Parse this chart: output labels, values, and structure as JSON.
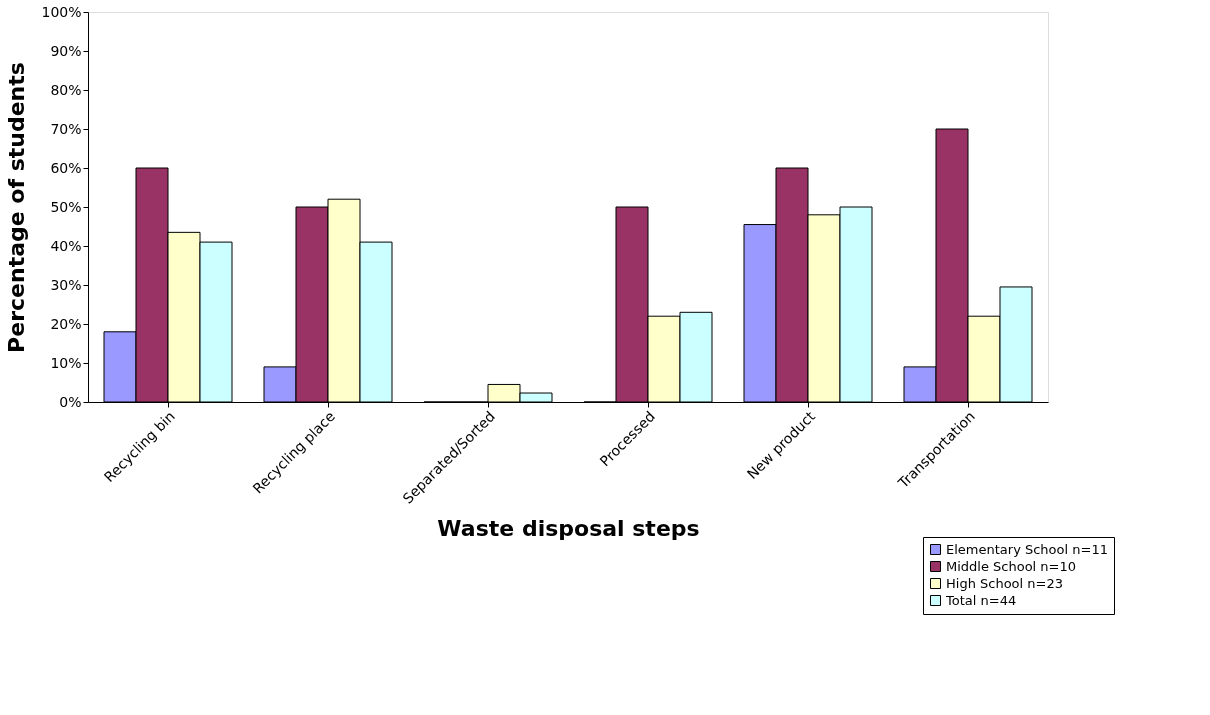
{
  "chart_data": {
    "type": "bar",
    "xlabel": "Waste disposal steps",
    "ylabel": "Percentage of students",
    "categories": [
      "Recycling bin",
      "Recycling place",
      "Separated/Sorted",
      "Processed",
      "New product",
      "Transportation"
    ],
    "series": [
      {
        "name": "Elementary School n=11",
        "color": "#9999ff",
        "values": [
          18,
          9,
          0,
          0,
          45.5,
          9
        ]
      },
      {
        "name": "Middle School n=10",
        "color": "#993366",
        "values": [
          60,
          50,
          0,
          50,
          60,
          70
        ]
      },
      {
        "name": "High School n=23",
        "color": "#ffffcc",
        "values": [
          43.5,
          52,
          4.5,
          22,
          48,
          22
        ]
      },
      {
        "name": "Total n=44",
        "color": "#ccffff",
        "values": [
          41,
          41,
          2.3,
          23,
          50,
          29.5
        ]
      }
    ],
    "ylim": [
      0,
      100
    ],
    "yticks": [
      {
        "value": 0,
        "label": "0%"
      },
      {
        "value": 10,
        "label": "10%"
      },
      {
        "value": 20,
        "label": "20%"
      },
      {
        "value": 30,
        "label": "30%"
      },
      {
        "value": 40,
        "label": "40%"
      },
      {
        "value": 50,
        "label": "50%"
      },
      {
        "value": 60,
        "label": "60%"
      },
      {
        "value": 70,
        "label": "70%"
      },
      {
        "value": 80,
        "label": "80%"
      },
      {
        "value": 90,
        "label": "90%"
      },
      {
        "value": 100,
        "label": "100%"
      }
    ],
    "grid": false,
    "legend": "bottom right"
  }
}
